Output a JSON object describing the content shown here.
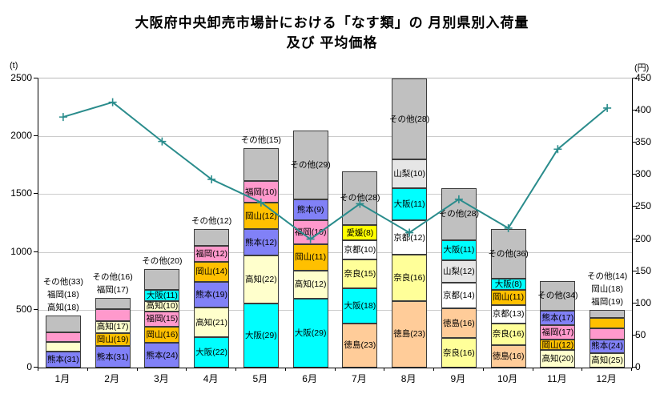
{
  "title": {
    "line1": "大阪府中央卸売市場計における「なす類」の 月別県別入荷量",
    "line2": "及び 平均価格"
  },
  "left_axis": {
    "unit": "(t)",
    "max": 2500,
    "ticks": [
      0,
      500,
      1000,
      1500,
      2000,
      2500
    ]
  },
  "right_axis": {
    "unit": "(円)",
    "max": 450,
    "ticks": [
      0,
      50,
      100,
      150,
      200,
      250,
      300,
      350,
      400,
      450
    ]
  },
  "chart_data": {
    "type": "stacked-bar+line",
    "categories": [
      "1月",
      "2月",
      "3月",
      "4月",
      "5月",
      "6月",
      "7月",
      "8月",
      "9月",
      "10月",
      "11月",
      "12月"
    ],
    "bar_unit": "t",
    "grid": true,
    "legend_position": "none",
    "line_series": {
      "name": "平均価格",
      "unit": "円",
      "color": "#2a8c8c",
      "values": [
        390,
        413,
        352,
        293,
        257,
        200,
        255,
        210,
        262,
        217,
        340,
        404
      ]
    },
    "colors": {
      "熊本": "#8181f7",
      "高知": "#ffffcc",
      "福岡": "#ff99cc",
      "岡山": "#ffc000",
      "大阪": "#00ffff",
      "その他": "#c0c0c0",
      "徳島": "#ffcc99",
      "奈良": "#ffff99",
      "京都": "#ffffff",
      "山梨": "#e6e6e6",
      "愛媛": "#ffff00"
    },
    "months": [
      {
        "month": "1月",
        "total_t": 450,
        "segments": [
          {
            "name": "熊本",
            "pct": 31,
            "label": "熊本(31)",
            "inside": true
          },
          {
            "name": "高知",
            "pct": 18,
            "label": "高知(18)",
            "inside": false
          },
          {
            "name": "福岡",
            "pct": 18,
            "label": "福岡(18)",
            "inside": false
          },
          {
            "name": "その他",
            "pct": 33,
            "label": "その他(33)",
            "inside": false
          }
        ],
        "above_labels": [
          "その他(33)",
          "福岡(18)",
          "高知(18)"
        ]
      },
      {
        "month": "2月",
        "total_t": 600,
        "segments": [
          {
            "name": "熊本",
            "pct": 31,
            "label": "熊本(31)",
            "inside": true
          },
          {
            "name": "岡山",
            "pct": 19,
            "label": "岡山(19)",
            "inside": true
          },
          {
            "name": "高知",
            "pct": 17,
            "label": "高知(17)",
            "inside": true
          },
          {
            "name": "福岡",
            "pct": 17,
            "label": "福岡(17)",
            "inside": false
          },
          {
            "name": "その他",
            "pct": 16,
            "label": "その他(16)",
            "inside": false
          }
        ],
        "above_labels": [
          "その他(16)",
          "福岡(17)"
        ]
      },
      {
        "month": "3月",
        "total_t": 850,
        "segments": [
          {
            "name": "熊本",
            "pct": 24,
            "label": "熊本(24)",
            "inside": true
          },
          {
            "name": "岡山",
            "pct": 16,
            "label": "岡山(16)",
            "inside": true
          },
          {
            "name": "福岡",
            "pct": 15,
            "label": "福岡(15)",
            "inside": true
          },
          {
            "name": "高知",
            "pct": 10,
            "label": "高知(10)",
            "inside": true
          },
          {
            "name": "大阪",
            "pct": 11,
            "label": "大阪(11)",
            "inside": true
          },
          {
            "name": "その他",
            "pct": 20,
            "label": "その他(20)",
            "inside": false
          }
        ],
        "above_labels": [
          "その他(20)"
        ]
      },
      {
        "month": "4月",
        "total_t": 1200,
        "segments": [
          {
            "name": "大阪",
            "pct": 22,
            "label": "大阪(22)",
            "inside": true
          },
          {
            "name": "高知",
            "pct": 21,
            "label": "高知(21)",
            "inside": true
          },
          {
            "name": "熊本",
            "pct": 19,
            "label": "熊本(19)",
            "inside": true
          },
          {
            "name": "岡山",
            "pct": 14,
            "label": "岡山(14)",
            "inside": true
          },
          {
            "name": "福岡",
            "pct": 12,
            "label": "福岡(12)",
            "inside": true
          },
          {
            "name": "その他",
            "pct": 12,
            "label": "その他(12)",
            "inside": false
          }
        ],
        "above_labels": [
          "その他(12)"
        ]
      },
      {
        "month": "5月",
        "total_t": 1900,
        "segments": [
          {
            "name": "大阪",
            "pct": 29,
            "label": "大阪(29)",
            "inside": true
          },
          {
            "name": "高知",
            "pct": 22,
            "label": "高知(22)",
            "inside": true
          },
          {
            "name": "熊本",
            "pct": 12,
            "label": "熊本(12)",
            "inside": true
          },
          {
            "name": "岡山",
            "pct": 12,
            "label": "岡山(12)",
            "inside": true
          },
          {
            "name": "福岡",
            "pct": 10,
            "label": "福岡(10)",
            "inside": true
          },
          {
            "name": "その他",
            "pct": 15,
            "label": "その他(15)",
            "inside": false
          }
        ],
        "above_labels": [
          "その他(15)"
        ]
      },
      {
        "month": "6月",
        "total_t": 2050,
        "segments": [
          {
            "name": "大阪",
            "pct": 29,
            "label": "大阪(29)",
            "inside": true
          },
          {
            "name": "高知",
            "pct": 12,
            "label": "高知(12)",
            "inside": true
          },
          {
            "name": "岡山",
            "pct": 11,
            "label": "岡山(11)",
            "inside": true
          },
          {
            "name": "福岡",
            "pct": 10,
            "label": "福岡(10)",
            "inside": true
          },
          {
            "name": "熊本",
            "pct": 9,
            "label": "熊本(9)",
            "inside": true
          },
          {
            "name": "その他",
            "pct": 29,
            "label": "その他(29)",
            "inside": true
          }
        ],
        "above_labels": []
      },
      {
        "month": "7月",
        "total_t": 1700,
        "segments": [
          {
            "name": "徳島",
            "pct": 23,
            "label": "徳島(23)",
            "inside": true
          },
          {
            "name": "大阪",
            "pct": 18,
            "label": "大阪(18)",
            "inside": true
          },
          {
            "name": "奈良",
            "pct": 15,
            "label": "奈良(15)",
            "inside": true
          },
          {
            "name": "京都",
            "pct": 10,
            "label": "京都(10)",
            "inside": true
          },
          {
            "name": "愛媛",
            "pct": 8,
            "label": "愛媛(8)",
            "inside": true
          },
          {
            "name": "その他",
            "pct": 28,
            "label": "その他(28)",
            "inside": true
          }
        ],
        "above_labels": []
      },
      {
        "month": "8月",
        "total_t": 2500,
        "segments": [
          {
            "name": "徳島",
            "pct": 23,
            "label": "徳島(23)",
            "inside": true
          },
          {
            "name": "奈良",
            "pct": 16,
            "label": "奈良(16)",
            "inside": true
          },
          {
            "name": "京都",
            "pct": 12,
            "label": "京都(12)",
            "inside": true
          },
          {
            "name": "大阪",
            "pct": 11,
            "label": "大阪(11)",
            "inside": true
          },
          {
            "name": "山梨",
            "pct": 10,
            "label": "山梨(10)",
            "inside": true
          },
          {
            "name": "その他",
            "pct": 28,
            "label": "その他(28)",
            "inside": true
          }
        ],
        "above_labels": []
      },
      {
        "month": "9月",
        "total_t": 1550,
        "segments": [
          {
            "name": "奈良",
            "pct": 16,
            "label": "奈良(16)",
            "inside": true
          },
          {
            "name": "徳島",
            "pct": 16,
            "label": "徳島(16)",
            "inside": true
          },
          {
            "name": "京都",
            "pct": 14,
            "label": "京都(14)",
            "inside": true
          },
          {
            "name": "山梨",
            "pct": 12,
            "label": "山梨(12)",
            "inside": true
          },
          {
            "name": "大阪",
            "pct": 11,
            "label": "大阪(11)",
            "inside": true
          },
          {
            "name": "その他",
            "pct": 28,
            "label": "その他(28)",
            "inside": true
          }
        ],
        "above_labels": []
      },
      {
        "month": "10月",
        "total_t": 1200,
        "segments": [
          {
            "name": "徳島",
            "pct": 16,
            "label": "徳島(16)",
            "inside": true
          },
          {
            "name": "奈良",
            "pct": 16,
            "label": "奈良(16)",
            "inside": true
          },
          {
            "name": "京都",
            "pct": 13,
            "label": "京都(13)",
            "inside": true
          },
          {
            "name": "岡山",
            "pct": 11,
            "label": "岡山(11)",
            "inside": true
          },
          {
            "name": "大阪",
            "pct": 8,
            "label": "大阪(8)",
            "inside": true
          },
          {
            "name": "その他",
            "pct": 36,
            "label": "その他(36)",
            "inside": true
          }
        ],
        "above_labels": []
      },
      {
        "month": "11月",
        "total_t": 750,
        "segments": [
          {
            "name": "高知",
            "pct": 20,
            "label": "高知(20)",
            "inside": true
          },
          {
            "name": "岡山",
            "pct": 12,
            "label": "岡山(12)",
            "inside": true
          },
          {
            "name": "福岡",
            "pct": 17,
            "label": "福岡(17)",
            "inside": true
          },
          {
            "name": "熊本",
            "pct": 17,
            "label": "熊本(17)",
            "inside": true
          },
          {
            "name": "その他",
            "pct": 34,
            "label": "その他(34)",
            "inside": true
          }
        ],
        "above_labels": []
      },
      {
        "month": "12月",
        "total_t": 500,
        "segments": [
          {
            "name": "高知",
            "pct": 25,
            "label": "高知(25)",
            "inside": true
          },
          {
            "name": "熊本",
            "pct": 24,
            "label": "熊本(24)",
            "inside": true
          },
          {
            "name": "福岡",
            "pct": 19,
            "label": "福岡(19)",
            "inside": false
          },
          {
            "name": "岡山",
            "pct": 18,
            "label": "岡山(18)",
            "inside": false
          },
          {
            "name": "その他",
            "pct": 14,
            "label": "その他(14)",
            "inside": false
          }
        ],
        "above_labels": [
          "その他(14)",
          "岡山(18)",
          "福岡(19)"
        ]
      }
    ]
  }
}
